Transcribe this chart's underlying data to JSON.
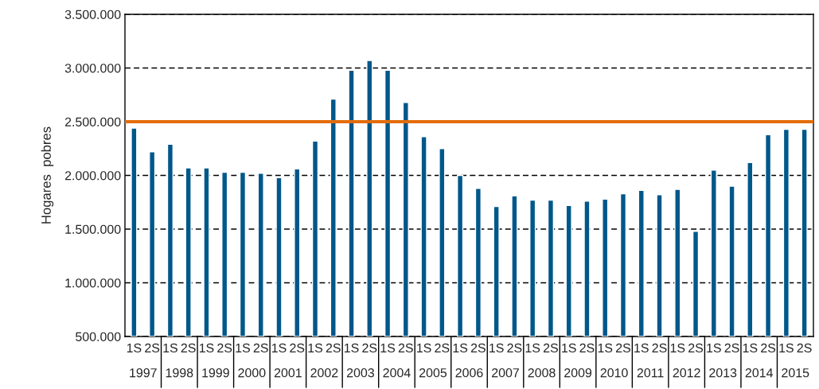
{
  "chart_data": {
    "type": "bar",
    "ylabel": "Hogares  pobres",
    "categories": [
      "1S",
      "2S",
      "1S",
      "2S",
      "1S",
      "2S",
      "1S",
      "2S",
      "1S",
      "2S",
      "1S",
      "2S",
      "1S",
      "2S",
      "1S",
      "2S",
      "1S",
      "2S",
      "1S",
      "2S",
      "1S",
      "2S",
      "1S",
      "2S",
      "1S",
      "2S",
      "1S",
      "2S",
      "1S",
      "2S",
      "1S",
      "2S",
      "1S",
      "2S",
      "1S",
      "2S",
      "1S",
      "2S"
    ],
    "series": [
      {
        "color": "#00578a",
        "values": [
          2440000,
          2220000,
          2290000,
          2070000,
          2070000,
          2030000,
          2030000,
          2020000,
          1980000,
          2060000,
          2320000,
          2710000,
          2980000,
          3070000,
          2980000,
          2680000,
          2360000,
          2250000,
          2000000,
          1880000,
          1710000,
          1810000,
          1770000,
          1770000,
          1720000,
          1760000,
          1780000,
          1830000,
          1860000,
          1820000,
          1870000,
          1480000,
          2050000,
          1900000,
          2120000,
          2380000,
          2430000,
          2430000
        ]
      }
    ],
    "annotations": [
      "1997",
      "1998",
      "1999",
      "2000",
      "2001",
      "2002",
      "2003",
      "2004",
      "2005",
      "2006",
      "2007",
      "2008",
      "2009",
      "2010",
      "2011",
      "2012",
      "2013",
      "2014",
      "2015"
    ],
    "ylim": [
      500000,
      3500000
    ],
    "yticks": [
      {
        "value": 500000,
        "label": "500.000"
      },
      {
        "value": 1000000,
        "label": "1.000.000"
      },
      {
        "value": 1500000,
        "label": "1.500.000"
      },
      {
        "value": 2000000,
        "label": "2.000.000"
      },
      {
        "value": 2500000,
        "label": "2.500.000"
      },
      {
        "value": 3000000,
        "label": "3.000.000"
      },
      {
        "value": 3500000,
        "label": "3.500.000"
      }
    ],
    "grid": "y",
    "line_style": "dashed",
    "ref_lines": [
      {
        "axis": "y",
        "value": 2500000,
        "color": "#e36c09"
      }
    ]
  }
}
